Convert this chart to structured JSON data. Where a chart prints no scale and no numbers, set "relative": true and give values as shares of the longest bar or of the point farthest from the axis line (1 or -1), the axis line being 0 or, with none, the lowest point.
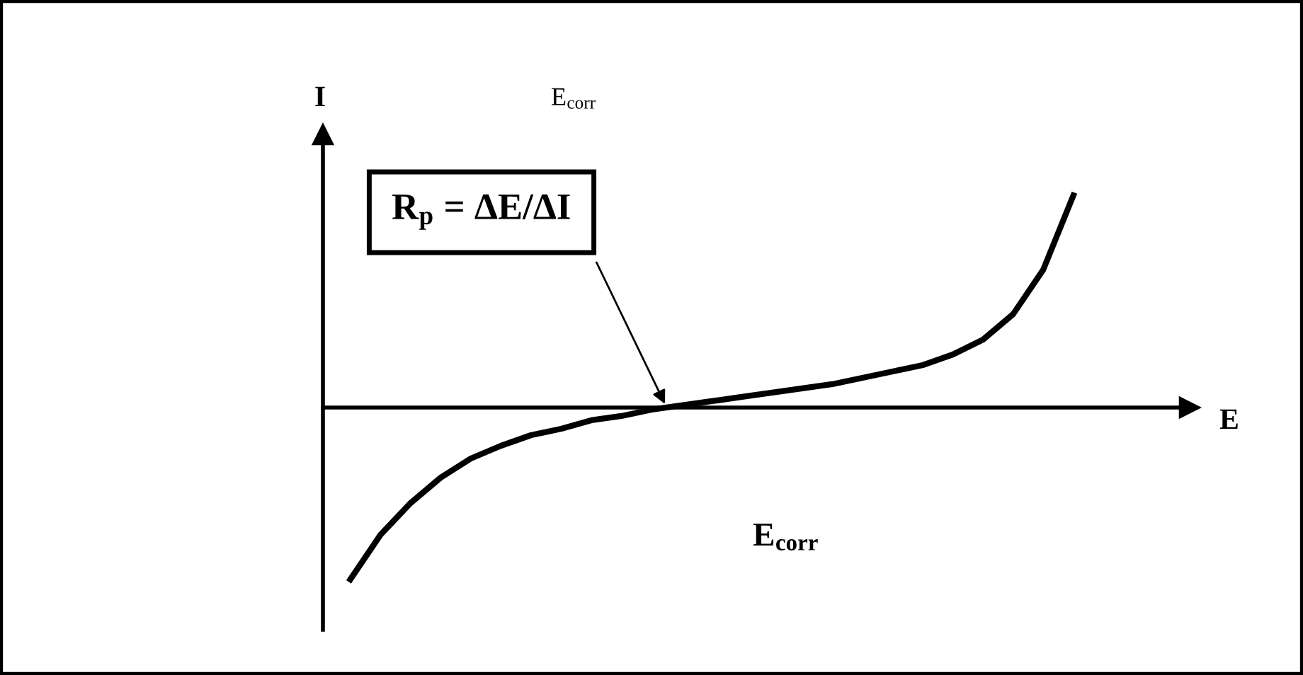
{
  "chart_data": {
    "type": "line",
    "relative": true,
    "xlabel": "E",
    "ylabel": "I",
    "categories": [
      null,
      null,
      null,
      null,
      null,
      null,
      null,
      null,
      null,
      null,
      null,
      null,
      null,
      null,
      null,
      null,
      null,
      null,
      null,
      null,
      null,
      null,
      null,
      null,
      null
    ],
    "series": [
      {
        "color": "#000000",
        "values": [
          -0.81,
          -0.6,
          -0.45,
          -0.33,
          -0.24,
          -0.18,
          -0.13,
          -0.1,
          -0.06,
          -0.04,
          -0.01,
          0.01,
          0.03,
          0.05,
          0.07,
          0.09,
          0.11,
          0.14,
          0.17,
          0.2,
          0.25,
          0.32,
          0.44,
          0.65,
          1
        ]
      }
    ],
    "annotations": [
      "E$_{corr}$",
      "R$_{p}$ = ΔE/ΔI",
      "E$_{corr}$"
    ],
    "marker": "none",
    "line_style": "solid",
    "grid": false,
    "legend": false
  }
}
